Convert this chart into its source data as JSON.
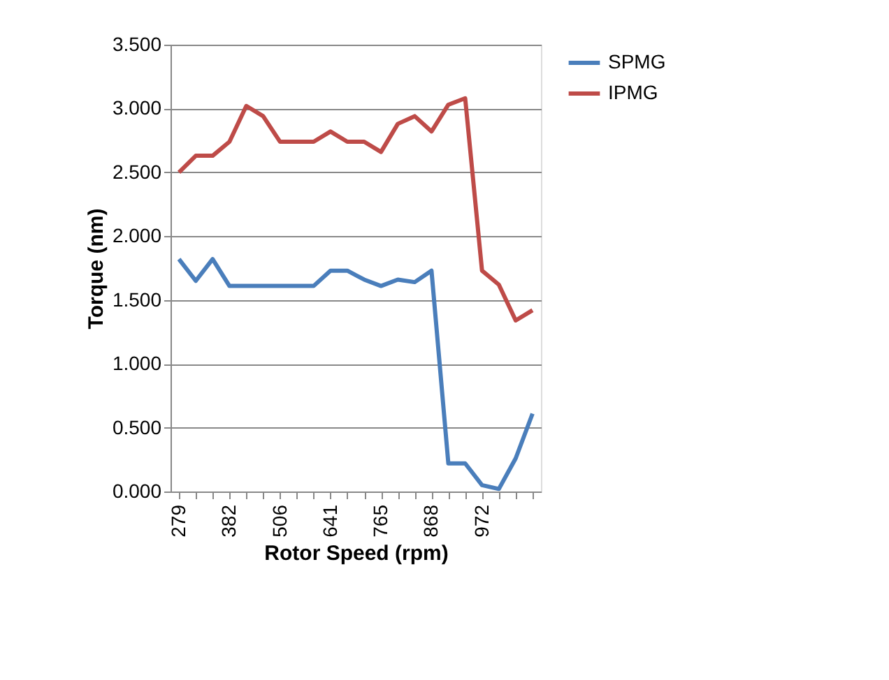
{
  "chart_data": {
    "type": "line",
    "xlabel": "Rotor Speed (rpm)",
    "ylabel": "Torque (nm)",
    "categories": [
      "279",
      null,
      null,
      "382",
      null,
      null,
      "506",
      null,
      null,
      "641",
      null,
      null,
      "765",
      null,
      null,
      "868",
      null,
      null,
      "972",
      null,
      null,
      null
    ],
    "series": [
      {
        "name": "SPMG",
        "color": "#4a7ebb",
        "values": [
          1.82,
          1.65,
          1.82,
          1.61,
          1.61,
          1.61,
          1.61,
          1.61,
          1.61,
          1.73,
          1.73,
          1.66,
          1.61,
          1.66,
          1.64,
          1.73,
          0.22,
          0.22,
          0.05,
          0.02,
          0.26,
          0.61
        ]
      },
      {
        "name": "IPMG",
        "color": "#be4b48",
        "values": [
          2.5,
          2.63,
          2.63,
          2.74,
          3.02,
          2.94,
          2.74,
          2.74,
          2.74,
          2.82,
          2.74,
          2.74,
          2.66,
          2.88,
          2.94,
          2.82,
          3.03,
          3.08,
          1.73,
          1.62,
          1.34,
          1.42
        ]
      }
    ],
    "ylim": [
      0,
      3.5
    ],
    "yticks": [
      {
        "value": 0,
        "label": "0.000"
      },
      {
        "value": 0.5,
        "label": "0.500"
      },
      {
        "value": 1,
        "label": "1.000"
      },
      {
        "value": 1.5,
        "label": "1.500"
      },
      {
        "value": 2,
        "label": "2.000"
      },
      {
        "value": 2.5,
        "label": "2.500"
      },
      {
        "value": 3,
        "label": "3.000"
      },
      {
        "value": 3.5,
        "label": "3.500"
      }
    ],
    "grid": "y",
    "legend": "right",
    "marker": "none",
    "line_style": "solid"
  }
}
